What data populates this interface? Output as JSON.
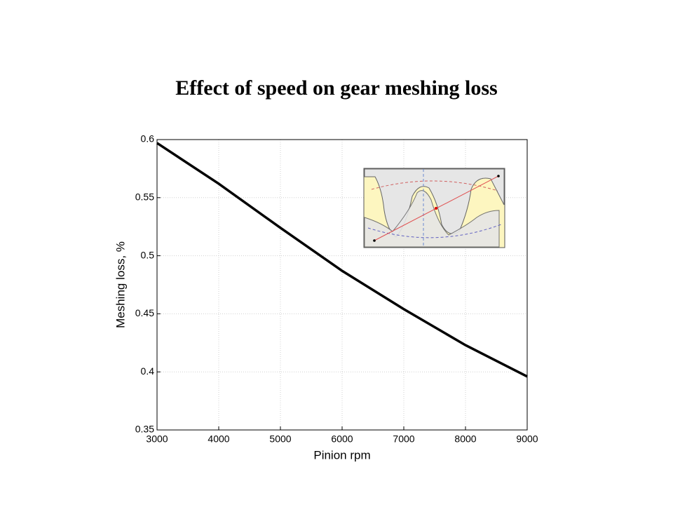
{
  "chart_data": {
    "type": "line",
    "title": "Effect of speed on gear meshing loss",
    "x_label": "Pinion rpm",
    "y_label": "Meshing loss, %",
    "x": [
      3000,
      4000,
      5000,
      6000,
      7000,
      8000,
      9000
    ],
    "values": [
      0.597,
      0.562,
      0.524,
      0.487,
      0.454,
      0.423,
      0.396
    ],
    "color": "#000000",
    "xlim": [
      3000,
      9000
    ],
    "xticks": [
      3000,
      4000,
      5000,
      6000,
      7000,
      8000,
      9000
    ],
    "ylim": [
      0.35,
      0.6
    ],
    "yticks": [
      0.35,
      0.4,
      0.45,
      0.5,
      0.55,
      0.6
    ],
    "grid": true
  }
}
